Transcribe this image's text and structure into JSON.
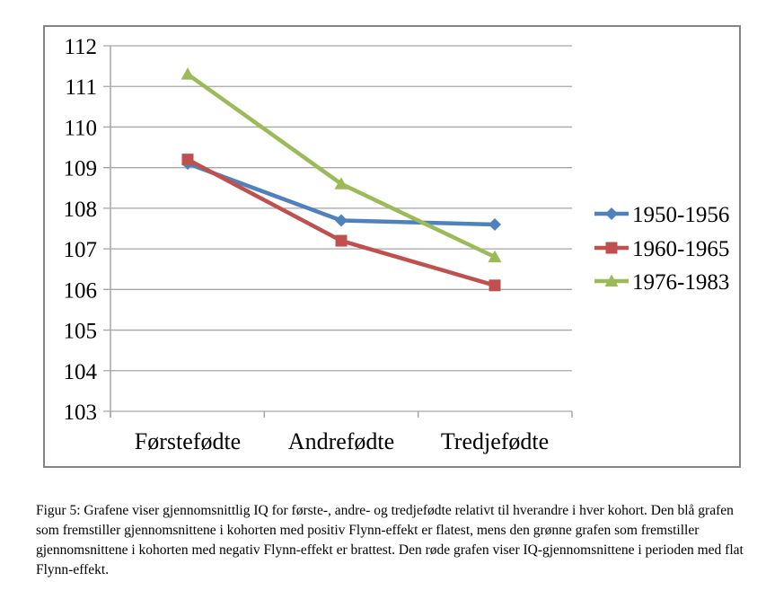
{
  "chart_data": {
    "type": "line",
    "title": "",
    "xlabel": "",
    "ylabel": "",
    "categories": [
      "Førstefødte",
      "Andrefødte",
      "Tredjefødte"
    ],
    "series": [
      {
        "name": "1950-1956",
        "color": "#4F81BD",
        "marker": "diamond",
        "values": [
          109.1,
          107.7,
          107.6
        ]
      },
      {
        "name": "1960-1965",
        "color": "#C0504D",
        "marker": "square",
        "values": [
          109.2,
          107.2,
          106.1
        ]
      },
      {
        "name": "1976-1983",
        "color": "#9BBB59",
        "marker": "triangle",
        "values": [
          111.3,
          108.6,
          106.8
        ]
      }
    ],
    "ylim": [
      103,
      112
    ],
    "ytick_step": 1,
    "grid": true,
    "legend_position": "right"
  },
  "colors": {
    "gridline": "#A6A6A6",
    "axis": "#A6A6A6",
    "frame_border": "#848484",
    "label_text": "#000000"
  },
  "caption": "Figur 5: Grafene viser gjennomsnittlig IQ for første-, andre- og tredjefødte relativt til hverandre i hver kohort. Den blå grafen som fremstiller gjennomsnittene i kohorten med positiv Flynn-effekt er flatest, mens den grønne grafen som fremstiller gjennomsnittene i kohorten med negativ Flynn-effekt er brattest. Den røde grafen viser IQ-gjennomsnittene i perioden med flat Flynn-effekt."
}
